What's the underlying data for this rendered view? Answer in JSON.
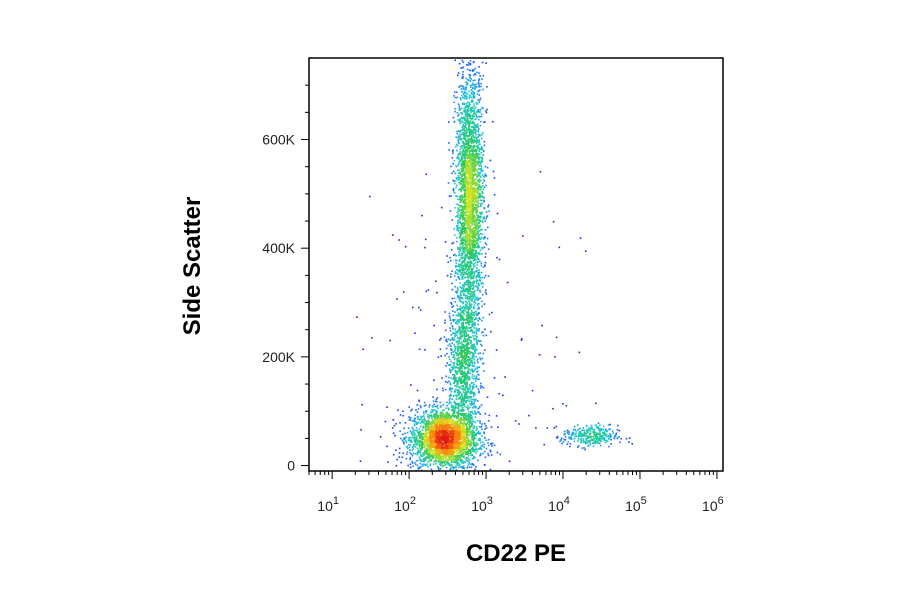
{
  "chart_data": {
    "type": "scatter",
    "title": "",
    "xlabel": "CD22 PE",
    "ylabel": "Side Scatter",
    "xscale": "log",
    "xlim": [
      5,
      1200000
    ],
    "ylim": [
      -10000,
      750000
    ],
    "grid": false,
    "legend": "none",
    "colormap": "density (blue-cyan-green-yellow-red)",
    "x_ticks": [
      {
        "base": "10",
        "exp": "1",
        "value": 10
      },
      {
        "base": "10",
        "exp": "2",
        "value": 100
      },
      {
        "base": "10",
        "exp": "3",
        "value": 1000
      },
      {
        "base": "10",
        "exp": "4",
        "value": 10000
      },
      {
        "base": "10",
        "exp": "5",
        "value": 100000
      },
      {
        "base": "10",
        "exp": "6",
        "value": 1000000
      }
    ],
    "y_ticks": [
      {
        "label": "0",
        "value": 0
      },
      {
        "label": "200K",
        "value": 200000
      },
      {
        "label": "400K",
        "value": 400000
      },
      {
        "label": "600K",
        "value": 600000
      }
    ],
    "populations": [
      {
        "center_x": 280,
        "center_y": 50000,
        "spread_log10_x": 0.22,
        "spread_y": 28000,
        "relative_density": 1.0
      },
      {
        "center_x": 600,
        "center_y": 490000,
        "spread_log10_x": 0.09,
        "spread_y": 120000,
        "relative_density": 0.9
      },
      {
        "center_x": 500,
        "center_y": 190000,
        "spread_log10_x": 0.1,
        "spread_y": 70000,
        "relative_density": 0.3
      },
      {
        "center_x": 22000,
        "center_y": 55000,
        "spread_log10_x": 0.18,
        "spread_y": 10000,
        "relative_density": 0.12
      }
    ],
    "colors": {
      "axis": "#000000",
      "low": "#1a1aff",
      "mid": "#1ec8d2",
      "high": "#e11a0c"
    }
  }
}
